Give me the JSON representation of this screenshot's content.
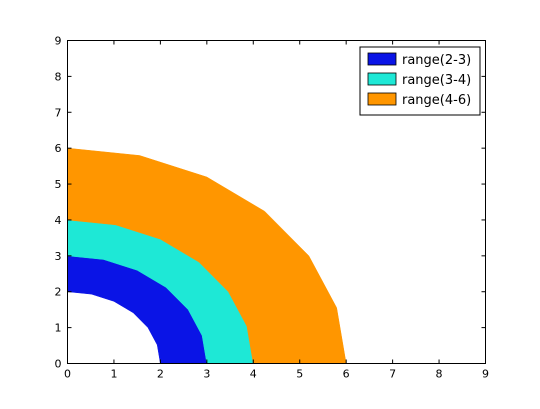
{
  "chart_data": {
    "type": "area",
    "title": "",
    "xlabel": "",
    "ylabel": "",
    "xlim": [
      0,
      9
    ],
    "ylim": [
      0,
      9
    ],
    "xticks": [
      "0",
      "1",
      "2",
      "3",
      "4",
      "5",
      "6",
      "7",
      "8",
      "9"
    ],
    "yticks": [
      "0",
      "1",
      "2",
      "3",
      "4",
      "5",
      "6",
      "7",
      "8",
      "9"
    ],
    "grid": false,
    "legend_position": "top-right",
    "series": [
      {
        "name": "range(2-3)",
        "color": "#0a14e6",
        "inner_radius": 2,
        "outer_radius": 3
      },
      {
        "name": "range(3-4)",
        "color": "#1ee8d6",
        "inner_radius": 3,
        "outer_radius": 4
      },
      {
        "name": "range(4-6)",
        "color": "#ff9600",
        "inner_radius": 4,
        "outer_radius": 6
      }
    ],
    "angle_samples_deg": [
      0,
      15,
      30,
      45,
      60,
      75,
      90
    ]
  }
}
